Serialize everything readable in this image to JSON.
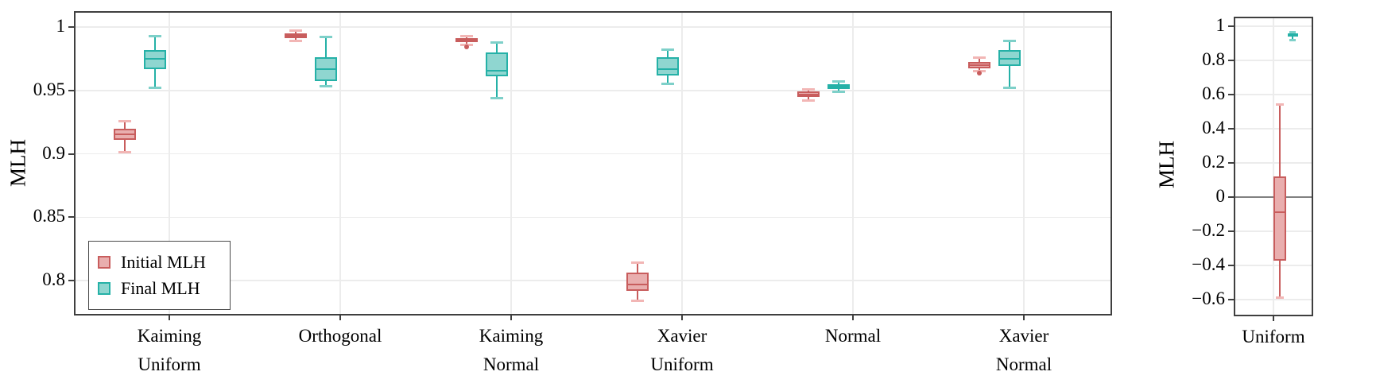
{
  "figure": {
    "background": "#ffffff",
    "frame_color": "#3f3f3f",
    "grid_color": "#ececec",
    "zero_line_color": "#808080",
    "text_color": "#000000"
  },
  "chart_data": [
    {
      "type": "box",
      "panel": "left",
      "title": "",
      "xlabel": "",
      "ylabel": "MLH",
      "grid": true,
      "legend_position": "lower-left",
      "ylim": [
        0.772,
        1.012
      ],
      "yticks": {
        "values": [
          1,
          0.95,
          0.9,
          0.85,
          0.8
        ],
        "labels": [
          "1",
          "0.95",
          "0.9",
          "0.85",
          "0.8"
        ]
      },
      "categories": [
        [
          "Kaiming",
          "Uniform"
        ],
        [
          "Orthogonal"
        ],
        [
          "Kaiming",
          "Normal"
        ],
        [
          "Xavier",
          "Uniform"
        ],
        [
          "Normal"
        ],
        [
          "Xavier",
          "Normal"
        ]
      ],
      "series": [
        {
          "name": "Initial MLH",
          "color": {
            "line": "#c85d5d",
            "fill": "#e9aeae",
            "cap": "#f2b6b5"
          },
          "boxes": [
            {
              "whisker_low": 0.901,
              "q1": 0.911,
              "median": 0.9155,
              "q3": 0.92,
              "whisker_high": 0.926,
              "outliers": []
            },
            {
              "whisker_low": 0.989,
              "q1": 0.991,
              "median": 0.993,
              "q3": 0.995,
              "whisker_high": 0.997,
              "outliers": []
            },
            {
              "whisker_low": 0.986,
              "q1": 0.988,
              "median": 0.9895,
              "q3": 0.9915,
              "whisker_high": 0.993,
              "outliers": [
                0.9845
              ]
            },
            {
              "whisker_low": 0.784,
              "q1": 0.792,
              "median": 0.797,
              "q3": 0.806,
              "whisker_high": 0.814,
              "outliers": []
            },
            {
              "whisker_low": 0.942,
              "q1": 0.945,
              "median": 0.947,
              "q3": 0.949,
              "whisker_high": 0.951,
              "outliers": []
            },
            {
              "whisker_low": 0.965,
              "q1": 0.9675,
              "median": 0.97,
              "q3": 0.9725,
              "whisker_high": 0.976,
              "outliers": [
                0.9635
              ]
            }
          ]
        },
        {
          "name": "Final MLH",
          "color": {
            "line": "#25b1a7",
            "fill": "#8fd6d0",
            "cap": "#7ed0c9"
          },
          "boxes": [
            {
              "whisker_low": 0.952,
              "q1": 0.967,
              "median": 0.975,
              "q3": 0.982,
              "whisker_high": 0.993,
              "outliers": []
            },
            {
              "whisker_low": 0.953,
              "q1": 0.9575,
              "median": 0.9665,
              "q3": 0.976,
              "whisker_high": 0.992,
              "outliers": []
            },
            {
              "whisker_low": 0.944,
              "q1": 0.961,
              "median": 0.9655,
              "q3": 0.98,
              "whisker_high": 0.988,
              "outliers": []
            },
            {
              "whisker_low": 0.955,
              "q1": 0.962,
              "median": 0.967,
              "q3": 0.976,
              "whisker_high": 0.982,
              "outliers": []
            },
            {
              "whisker_low": 0.949,
              "q1": 0.951,
              "median": 0.953,
              "q3": 0.955,
              "whisker_high": 0.957,
              "outliers": []
            },
            {
              "whisker_low": 0.952,
              "q1": 0.969,
              "median": 0.975,
              "q3": 0.982,
              "whisker_high": 0.989,
              "outliers": []
            }
          ]
        }
      ]
    },
    {
      "type": "box",
      "panel": "right",
      "title": "",
      "xlabel": "",
      "ylabel": "MLH",
      "grid": true,
      "zero_line": true,
      "legend_position": "none",
      "ylim": [
        -0.69,
        1.05
      ],
      "yticks": {
        "values": [
          1,
          0.8,
          0.6,
          0.4,
          0.2,
          0,
          -0.2,
          -0.4,
          -0.6
        ],
        "labels": [
          "1",
          "0.8",
          "0.6",
          "0.4",
          "0.2",
          "0",
          "−0.2",
          "−0.4",
          "−0.6"
        ]
      },
      "categories": [
        [
          "Uniform"
        ]
      ],
      "series": [
        {
          "name": "Initial MLH",
          "color": {
            "line": "#c85d5d",
            "fill": "#e9aeae",
            "cap": "#f2b6b5"
          },
          "boxes": [
            {
              "whisker_low": -0.59,
              "q1": -0.37,
              "median": -0.09,
              "q3": 0.12,
              "whisker_high": 0.54,
              "outliers": []
            }
          ]
        },
        {
          "name": "Final MLH",
          "color": {
            "line": "#25b1a7",
            "fill": "#8fd6d0",
            "cap": "#7ed0c9"
          },
          "boxes": [
            {
              "whisker_low": 0.92,
              "q1": 0.944,
              "median": 0.952,
              "q3": 0.96,
              "whisker_high": 0.966,
              "outliers": []
            }
          ]
        }
      ]
    }
  ]
}
